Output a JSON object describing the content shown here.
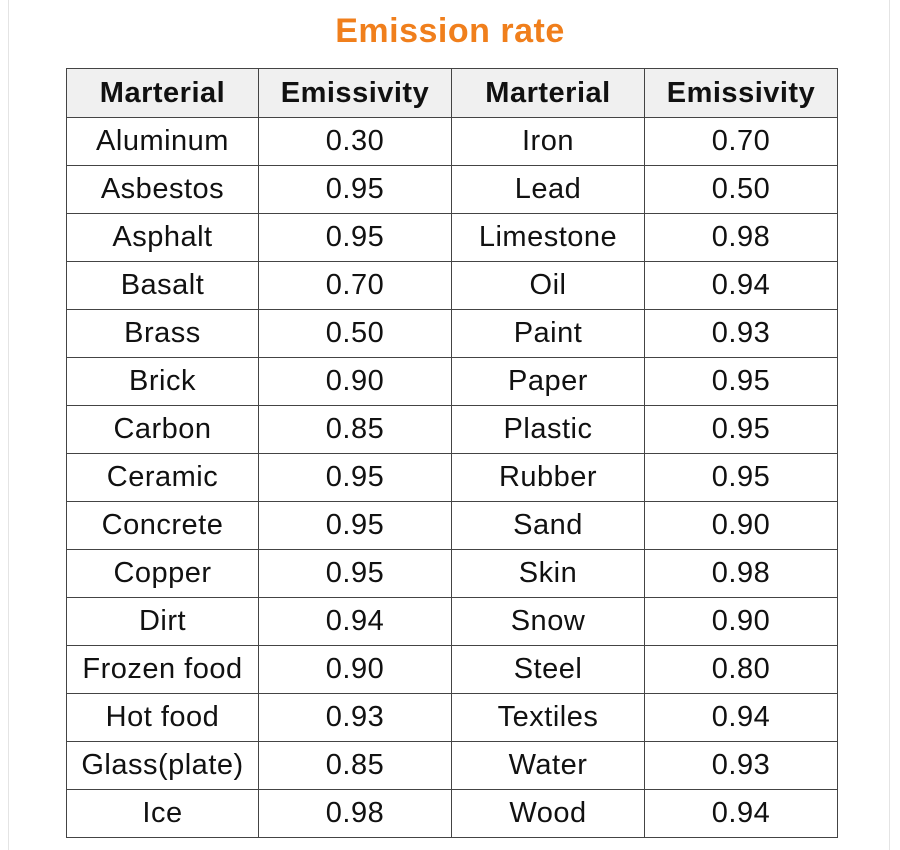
{
  "title": "Emission rate",
  "headers": [
    "Marterial",
    "Emissivity",
    "Marterial",
    "Emissivity"
  ],
  "rows": [
    [
      "Aluminum",
      "0.30",
      "Iron",
      "0.70"
    ],
    [
      "Asbestos",
      "0.95",
      "Lead",
      "0.50"
    ],
    [
      "Asphalt",
      "0.95",
      "Limestone",
      "0.98"
    ],
    [
      "Basalt",
      "0.70",
      "Oil",
      "0.94"
    ],
    [
      "Brass",
      "0.50",
      "Paint",
      "0.93"
    ],
    [
      "Brick",
      "0.90",
      "Paper",
      "0.95"
    ],
    [
      "Carbon",
      "0.85",
      "Plastic",
      "0.95"
    ],
    [
      "Ceramic",
      "0.95",
      "Rubber",
      "0.95"
    ],
    [
      "Concrete",
      "0.95",
      "Sand",
      "0.90"
    ],
    [
      "Copper",
      "0.95",
      "Skin",
      "0.98"
    ],
    [
      "Dirt",
      "0.94",
      "Snow",
      "0.90"
    ],
    [
      "Frozen food",
      "0.90",
      "Steel",
      "0.80"
    ],
    [
      "Hot food",
      "0.93",
      "Textiles",
      "0.94"
    ],
    [
      "Glass(plate)",
      "0.85",
      "Water",
      "0.93"
    ],
    [
      "Ice",
      "0.98",
      "Wood",
      "0.94"
    ]
  ],
  "colors": {
    "title": "#f07f1c",
    "header_bg": "#f0f0f0",
    "border": "#444444"
  }
}
